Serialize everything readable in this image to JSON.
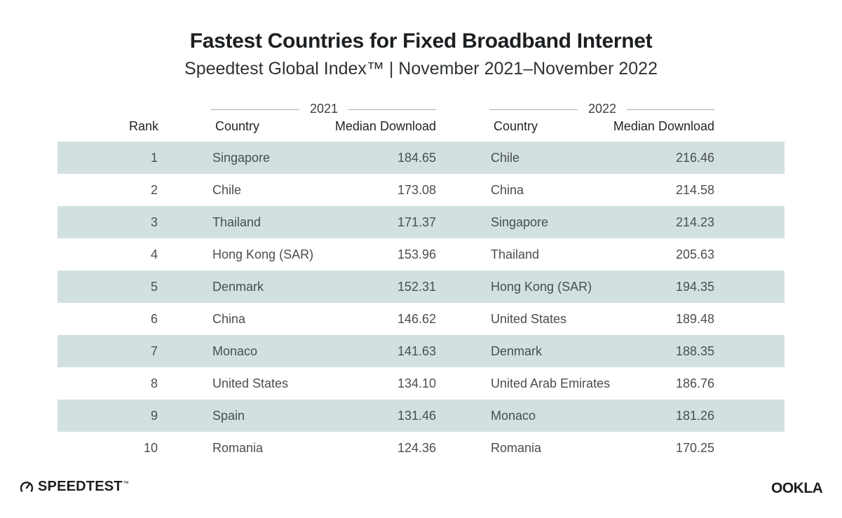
{
  "chart_data": {
    "type": "table",
    "title": "Fastest Countries for Fixed Broadband Internet",
    "subtitle": "Speedtest Global Index™ | November 2021–November 2022",
    "group_labels": [
      "2021",
      "2022"
    ],
    "columns": {
      "rank": "Rank",
      "country_2021": "Country",
      "download_2021": "Median Download",
      "country_2022": "Country",
      "download_2022": "Median Download"
    },
    "rows": [
      {
        "rank": "1",
        "country_2021": "Singapore",
        "download_2021": "184.65",
        "country_2022": "Chile",
        "download_2022": "216.46"
      },
      {
        "rank": "2",
        "country_2021": "Chile",
        "download_2021": "173.08",
        "country_2022": "China",
        "download_2022": "214.58"
      },
      {
        "rank": "3",
        "country_2021": "Thailand",
        "download_2021": "171.37",
        "country_2022": "Singapore",
        "download_2022": "214.23"
      },
      {
        "rank": "4",
        "country_2021": "Hong Kong (SAR)",
        "download_2021": "153.96",
        "country_2022": "Thailand",
        "download_2022": "205.63"
      },
      {
        "rank": "5",
        "country_2021": "Denmark",
        "download_2021": "152.31",
        "country_2022": "Hong Kong (SAR)",
        "download_2022": "194.35"
      },
      {
        "rank": "6",
        "country_2021": "China",
        "download_2021": "146.62",
        "country_2022": "United States",
        "download_2022": "189.48"
      },
      {
        "rank": "7",
        "country_2021": "Monaco",
        "download_2021": "141.63",
        "country_2022": "Denmark",
        "download_2022": "188.35"
      },
      {
        "rank": "8",
        "country_2021": "United States",
        "download_2021": "134.10",
        "country_2022": "United Arab Emirates",
        "download_2022": "186.76"
      },
      {
        "rank": "9",
        "country_2021": "Spain",
        "download_2021": "131.46",
        "country_2022": "Monaco",
        "download_2022": "181.26"
      },
      {
        "rank": "10",
        "country_2021": "Romania",
        "download_2021": "124.36",
        "country_2022": "Romania",
        "download_2022": "170.25"
      }
    ]
  },
  "branding": {
    "left_logo": "SPEEDTEST",
    "left_logo_mark": "™",
    "right_logo": "OOKLA"
  },
  "colors": {
    "row_shade": "#d2e0e1",
    "title": "#1c1f22",
    "cell_text": "#4a4e51",
    "rule": "#a8acae"
  }
}
